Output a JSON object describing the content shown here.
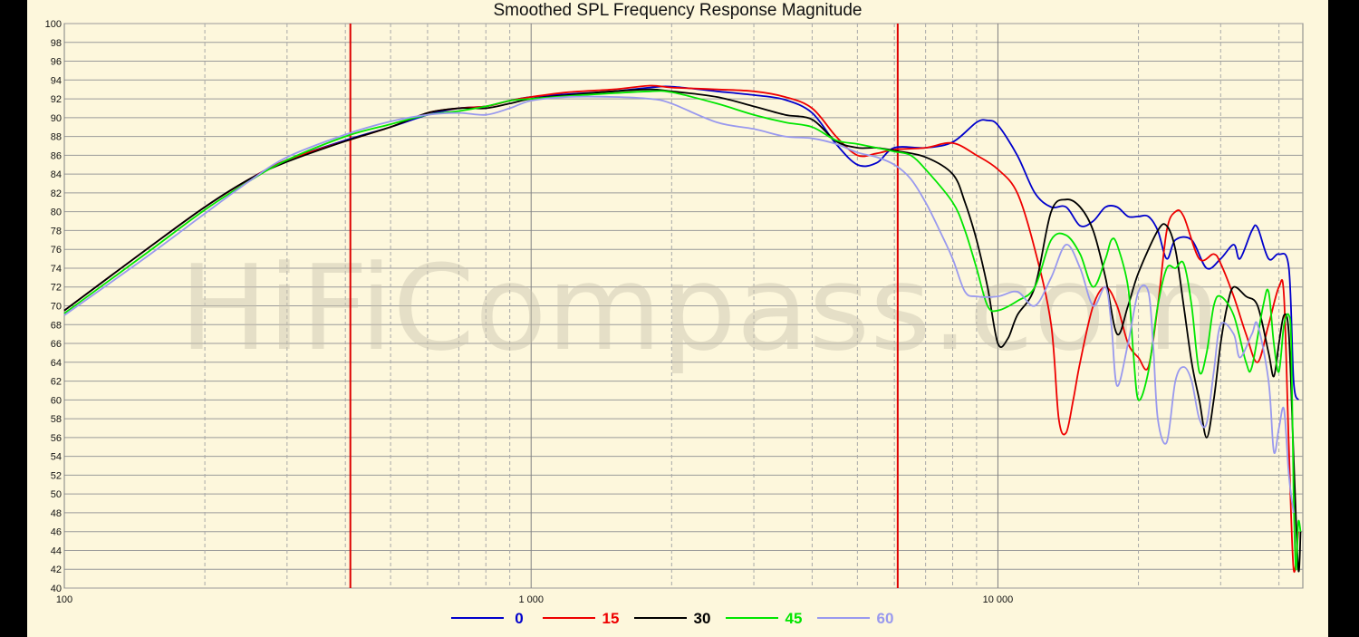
{
  "chart_data": {
    "type": "line",
    "title": "Smoothed SPL Frequency Response Magnitude",
    "xlabel": "",
    "ylabel": "",
    "x_scale": "log",
    "xlim": [
      100,
      45000
    ],
    "ylim": [
      40,
      100
    ],
    "x_ticks": [
      {
        "value": 100,
        "label": "100"
      },
      {
        "value": 1000,
        "label": "1 000"
      },
      {
        "value": 10000,
        "label": "10 000"
      }
    ],
    "y_ticks": [
      40,
      42,
      44,
      46,
      48,
      50,
      52,
      54,
      56,
      58,
      60,
      62,
      64,
      66,
      68,
      70,
      72,
      74,
      76,
      78,
      80,
      82,
      84,
      86,
      88,
      90,
      92,
      94,
      96,
      98,
      100
    ],
    "grid": true,
    "watermark": "HiFiCompass.com",
    "markers": [
      {
        "x": 410,
        "color": "#dd0000"
      },
      {
        "x": 6100,
        "color": "#dd0000"
      }
    ],
    "legend_position": "bottom",
    "series": [
      {
        "name": "0",
        "color": "#0000cc",
        "points": [
          [
            100,
            69.5
          ],
          [
            150,
            76
          ],
          [
            200,
            80.5
          ],
          [
            250,
            83.5
          ],
          [
            300,
            85.5
          ],
          [
            400,
            87.6
          ],
          [
            500,
            89
          ],
          [
            600,
            90.3
          ],
          [
            700,
            91
          ],
          [
            800,
            91.2
          ],
          [
            900,
            91.8
          ],
          [
            1000,
            92.2
          ],
          [
            1200,
            92.5
          ],
          [
            1500,
            92.8
          ],
          [
            1800,
            93.2
          ],
          [
            2000,
            93.3
          ],
          [
            2500,
            92.8
          ],
          [
            3000,
            92.4
          ],
          [
            3500,
            91.9
          ],
          [
            4000,
            90.5
          ],
          [
            4500,
            87.2
          ],
          [
            5000,
            85
          ],
          [
            5500,
            85.2
          ],
          [
            6000,
            86.8
          ],
          [
            7000,
            86.8
          ],
          [
            8000,
            87.4
          ],
          [
            9000,
            89.5
          ],
          [
            9500,
            89.7
          ],
          [
            10000,
            89.2
          ],
          [
            11000,
            86
          ],
          [
            12000,
            82
          ],
          [
            13000,
            80.5
          ],
          [
            14000,
            80.5
          ],
          [
            15000,
            78.5
          ],
          [
            16000,
            79
          ],
          [
            17000,
            80.5
          ],
          [
            18000,
            80.5
          ],
          [
            19000,
            79.5
          ],
          [
            20000,
            79.5
          ],
          [
            21000,
            79.5
          ],
          [
            22000,
            78
          ],
          [
            23000,
            75
          ],
          [
            24000,
            77
          ],
          [
            26000,
            77
          ],
          [
            28000,
            74
          ],
          [
            30000,
            75
          ],
          [
            32000,
            76.5
          ],
          [
            33000,
            75
          ],
          [
            35000,
            78
          ],
          [
            36000,
            78.3
          ],
          [
            38000,
            75
          ],
          [
            40000,
            75.5
          ],
          [
            42000,
            74
          ],
          [
            43000,
            62
          ],
          [
            44000,
            60
          ]
        ]
      },
      {
        "name": "15",
        "color": "#ee0000",
        "points": [
          [
            100,
            69.5
          ],
          [
            150,
            76
          ],
          [
            200,
            80.5
          ],
          [
            250,
            83.5
          ],
          [
            300,
            85.5
          ],
          [
            400,
            87.5
          ],
          [
            500,
            89
          ],
          [
            600,
            90.5
          ],
          [
            700,
            91
          ],
          [
            800,
            91.2
          ],
          [
            900,
            91.8
          ],
          [
            1000,
            92.2
          ],
          [
            1200,
            92.7
          ],
          [
            1500,
            93
          ],
          [
            1800,
            93.4
          ],
          [
            2000,
            93.2
          ],
          [
            2500,
            93
          ],
          [
            3000,
            92.8
          ],
          [
            3500,
            92.2
          ],
          [
            4000,
            91
          ],
          [
            4500,
            88
          ],
          [
            5000,
            86
          ],
          [
            5500,
            86.2
          ],
          [
            6000,
            86.6
          ],
          [
            7000,
            86.8
          ],
          [
            8000,
            87.3
          ],
          [
            9000,
            86
          ],
          [
            10000,
            84.5
          ],
          [
            11000,
            82
          ],
          [
            12000,
            76
          ],
          [
            13000,
            68
          ],
          [
            13500,
            58
          ],
          [
            14000,
            56.5
          ],
          [
            14500,
            60
          ],
          [
            15000,
            64
          ],
          [
            16000,
            70
          ],
          [
            17000,
            72
          ],
          [
            18000,
            70
          ],
          [
            19000,
            66
          ],
          [
            20000,
            64.5
          ],
          [
            21000,
            63.5
          ],
          [
            22000,
            70
          ],
          [
            23000,
            78
          ],
          [
            24000,
            80
          ],
          [
            25000,
            79.5
          ],
          [
            27000,
            75
          ],
          [
            29000,
            75.5
          ],
          [
            30000,
            74.5
          ],
          [
            32000,
            71
          ],
          [
            34000,
            67
          ],
          [
            36000,
            64
          ],
          [
            38000,
            68
          ],
          [
            40000,
            72
          ],
          [
            41000,
            71
          ],
          [
            42000,
            55
          ],
          [
            43000,
            42
          ],
          [
            44000,
            46
          ]
        ]
      },
      {
        "name": "30",
        "color": "#000000",
        "points": [
          [
            100,
            69.5
          ],
          [
            150,
            76
          ],
          [
            200,
            80.5
          ],
          [
            250,
            83.5
          ],
          [
            300,
            85.3
          ],
          [
            400,
            87.5
          ],
          [
            500,
            89
          ],
          [
            600,
            90.5
          ],
          [
            700,
            91
          ],
          [
            800,
            91
          ],
          [
            900,
            91.5
          ],
          [
            1000,
            92
          ],
          [
            1200,
            92.4
          ],
          [
            1500,
            92.8
          ],
          [
            1800,
            93
          ],
          [
            2000,
            92.8
          ],
          [
            2500,
            92.2
          ],
          [
            3000,
            91.2
          ],
          [
            3500,
            90.3
          ],
          [
            4000,
            89.8
          ],
          [
            4500,
            87.5
          ],
          [
            5000,
            86.8
          ],
          [
            5500,
            86.8
          ],
          [
            6000,
            86.5
          ],
          [
            7000,
            85.8
          ],
          [
            8000,
            84
          ],
          [
            8500,
            81
          ],
          [
            9000,
            77
          ],
          [
            9500,
            72
          ],
          [
            10000,
            66
          ],
          [
            10500,
            66.5
          ],
          [
            11000,
            69
          ],
          [
            12000,
            72
          ],
          [
            13000,
            80
          ],
          [
            14000,
            81.3
          ],
          [
            15000,
            80.5
          ],
          [
            16000,
            78
          ],
          [
            17000,
            73
          ],
          [
            18000,
            67
          ],
          [
            19000,
            70
          ],
          [
            20000,
            73.5
          ],
          [
            22000,
            78
          ],
          [
            23000,
            78.5
          ],
          [
            24000,
            76
          ],
          [
            25000,
            70
          ],
          [
            26000,
            64
          ],
          [
            27000,
            60
          ],
          [
            28000,
            56
          ],
          [
            29000,
            60
          ],
          [
            30000,
            66
          ],
          [
            31000,
            70
          ],
          [
            32000,
            72
          ],
          [
            34000,
            71
          ],
          [
            36000,
            70
          ],
          [
            38000,
            65
          ],
          [
            39000,
            62.5
          ],
          [
            40000,
            66
          ],
          [
            41000,
            69
          ],
          [
            42000,
            67
          ],
          [
            43000,
            54
          ],
          [
            44000,
            42
          ],
          [
            44500,
            46
          ]
        ]
      },
      {
        "name": "45",
        "color": "#00e600",
        "points": [
          [
            100,
            69.2
          ],
          [
            150,
            75.6
          ],
          [
            200,
            80.2
          ],
          [
            250,
            83.3
          ],
          [
            300,
            85.5
          ],
          [
            400,
            88
          ],
          [
            500,
            89.3
          ],
          [
            600,
            90.3
          ],
          [
            700,
            90.7
          ],
          [
            800,
            91.2
          ],
          [
            900,
            91.8
          ],
          [
            1000,
            92
          ],
          [
            1200,
            92.3
          ],
          [
            1500,
            92.6
          ],
          [
            1800,
            92.8
          ],
          [
            2000,
            92.7
          ],
          [
            2500,
            91.5
          ],
          [
            3000,
            90.3
          ],
          [
            3500,
            89.5
          ],
          [
            4000,
            89
          ],
          [
            4500,
            87.6
          ],
          [
            5000,
            87.2
          ],
          [
            5500,
            86.8
          ],
          [
            6000,
            86.4
          ],
          [
            6500,
            86
          ],
          [
            7000,
            84.5
          ],
          [
            8000,
            81
          ],
          [
            8500,
            78
          ],
          [
            9000,
            74
          ],
          [
            9500,
            70
          ],
          [
            10000,
            69.5
          ],
          [
            11000,
            70.5
          ],
          [
            12000,
            72
          ],
          [
            13000,
            77
          ],
          [
            14000,
            77.5
          ],
          [
            15000,
            75.5
          ],
          [
            16000,
            72
          ],
          [
            17000,
            75
          ],
          [
            17500,
            77
          ],
          [
            18000,
            76.5
          ],
          [
            19000,
            72
          ],
          [
            19500,
            65
          ],
          [
            20000,
            60
          ],
          [
            21000,
            63
          ],
          [
            22000,
            70
          ],
          [
            23000,
            74
          ],
          [
            24000,
            74
          ],
          [
            25000,
            74.5
          ],
          [
            26000,
            70
          ],
          [
            27000,
            63
          ],
          [
            28000,
            65
          ],
          [
            29000,
            70
          ],
          [
            30000,
            71
          ],
          [
            32000,
            69
          ],
          [
            34000,
            64
          ],
          [
            35000,
            63.5
          ],
          [
            37000,
            70
          ],
          [
            38000,
            71.5
          ],
          [
            39000,
            66
          ],
          [
            40000,
            63
          ],
          [
            41000,
            68
          ],
          [
            42000,
            69
          ],
          [
            42500,
            66
          ],
          [
            43000,
            50
          ],
          [
            43500,
            42
          ],
          [
            44000,
            47
          ],
          [
            44500,
            46
          ]
        ]
      },
      {
        "name": "60",
        "color": "#9999ee",
        "points": [
          [
            100,
            69
          ],
          [
            150,
            75.2
          ],
          [
            200,
            79.8
          ],
          [
            250,
            83.3
          ],
          [
            300,
            85.8
          ],
          [
            400,
            88.2
          ],
          [
            500,
            89.6
          ],
          [
            600,
            90.3
          ],
          [
            700,
            90.5
          ],
          [
            800,
            90.3
          ],
          [
            900,
            91
          ],
          [
            1000,
            91.8
          ],
          [
            1200,
            92.2
          ],
          [
            1500,
            92.2
          ],
          [
            1800,
            92
          ],
          [
            2000,
            91.5
          ],
          [
            2500,
            89.5
          ],
          [
            3000,
            88.8
          ],
          [
            3500,
            88
          ],
          [
            4000,
            87.8
          ],
          [
            4500,
            87.2
          ],
          [
            5000,
            86.3
          ],
          [
            5500,
            85.8
          ],
          [
            6000,
            85
          ],
          [
            6500,
            83.5
          ],
          [
            7000,
            81
          ],
          [
            7500,
            78
          ],
          [
            8000,
            75
          ],
          [
            8500,
            71.5
          ],
          [
            9000,
            71
          ],
          [
            10000,
            71
          ],
          [
            11000,
            71.5
          ],
          [
            12000,
            70
          ],
          [
            13000,
            73
          ],
          [
            14000,
            76.5
          ],
          [
            15000,
            74
          ],
          [
            16000,
            70
          ],
          [
            17000,
            72
          ],
          [
            17500,
            68
          ],
          [
            18000,
            61.5
          ],
          [
            19000,
            66
          ],
          [
            20000,
            71.5
          ],
          [
            21000,
            71.5
          ],
          [
            21500,
            66
          ],
          [
            22000,
            58
          ],
          [
            23000,
            55.5
          ],
          [
            24000,
            62
          ],
          [
            25000,
            63.5
          ],
          [
            26000,
            62
          ],
          [
            27000,
            58
          ],
          [
            28000,
            57.5
          ],
          [
            29000,
            63
          ],
          [
            30000,
            68
          ],
          [
            32000,
            67
          ],
          [
            33000,
            64.5
          ],
          [
            35000,
            67
          ],
          [
            36000,
            68
          ],
          [
            38000,
            62
          ],
          [
            39000,
            54.5
          ],
          [
            40000,
            57
          ],
          [
            41000,
            59
          ],
          [
            42000,
            52
          ],
          [
            43000,
            48
          ]
        ]
      }
    ]
  }
}
